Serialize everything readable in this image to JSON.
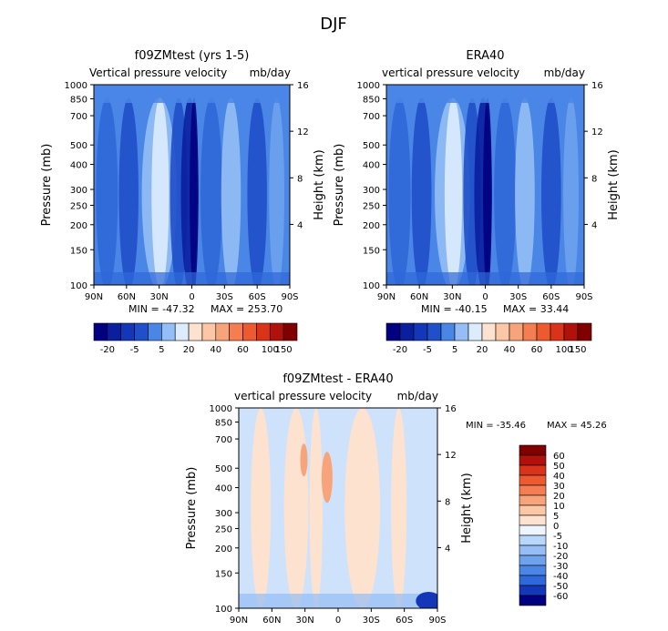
{
  "figure": {
    "title": "DJF",
    "colors": {
      "blues": [
        "#000080",
        "#0a1f9e",
        "#1337b8",
        "#1f4fc9",
        "#2f68d8",
        "#4a86e6",
        "#6ea2ee",
        "#94bef5",
        "#b9d7fa",
        "#dcecfd"
      ],
      "warm": [
        "#fde3cf",
        "#fbc7a6",
        "#f8a47b",
        "#f47e52",
        "#ee5a30",
        "#d9331a",
        "#b0120b",
        "#800000"
      ]
    }
  },
  "chart_data": [
    {
      "type": "heatmap",
      "title": "f09ZMtest (yrs 1-5)",
      "subtitle_left": "Vertical pressure velocity",
      "subtitle_right": "mb/day",
      "ylabel": "Pressure (mb)",
      "y2label": "Height (km)",
      "x_ticks": [
        "90N",
        "60N",
        "30N",
        "0",
        "30S",
        "60S",
        "90S"
      ],
      "x_tick_lat": [
        90,
        60,
        30,
        0,
        -30,
        -60,
        -90
      ],
      "y_ticks": [
        100,
        150,
        200,
        250,
        300,
        400,
        500,
        700,
        850,
        1000
      ],
      "y2_ticks": [
        16,
        12,
        8,
        4
      ],
      "ylim": [
        1000,
        100
      ],
      "log_scale_y": true,
      "min_label": "MIN = -47.32",
      "max_label": "MAX = 253.70",
      "colorbar_labels": [
        "-20",
        "-5",
        "5",
        "20",
        "40",
        "60",
        "100",
        "150"
      ],
      "colorbar_levels": [
        -30,
        -20,
        -10,
        -5,
        0,
        5,
        10,
        20,
        30,
        40,
        50,
        60,
        80,
        100,
        150
      ]
    },
    {
      "type": "heatmap",
      "title": "ERA40",
      "subtitle_left": "vertical pressure velocity",
      "subtitle_right": "mb/day",
      "ylabel": "Pressure (mb)",
      "y2label": "Height (km)",
      "x_ticks": [
        "90N",
        "60N",
        "30N",
        "0",
        "30S",
        "60S",
        "90S"
      ],
      "x_tick_lat": [
        90,
        60,
        30,
        0,
        -30,
        -60,
        -90
      ],
      "y_ticks": [
        100,
        150,
        200,
        250,
        300,
        400,
        500,
        700,
        850,
        1000
      ],
      "y2_ticks": [
        16,
        12,
        8,
        4
      ],
      "ylim": [
        1000,
        100
      ],
      "log_scale_y": true,
      "min_label": "MIN = -40.15",
      "max_label": "MAX = 33.44",
      "colorbar_labels": [
        "-20",
        "-5",
        "5",
        "20",
        "40",
        "60",
        "100",
        "150"
      ],
      "colorbar_levels": [
        -30,
        -20,
        -10,
        -5,
        0,
        5,
        10,
        20,
        30,
        40,
        50,
        60,
        80,
        100,
        150
      ]
    },
    {
      "type": "heatmap",
      "title": "f09ZMtest - ERA40",
      "subtitle_left": "vertical pressure velocity",
      "subtitle_right": "mb/day",
      "ylabel": "Pressure (mb)",
      "y2label": "Height (km)",
      "x_ticks": [
        "90N",
        "60N",
        "30N",
        "0",
        "30S",
        "60S",
        "90S"
      ],
      "x_tick_lat": [
        90,
        60,
        30,
        0,
        -30,
        -60,
        -90
      ],
      "y_ticks": [
        100,
        150,
        200,
        250,
        300,
        400,
        500,
        700,
        850,
        1000
      ],
      "y2_ticks": [
        16,
        12,
        8,
        4
      ],
      "ylim": [
        1000,
        100
      ],
      "log_scale_y": true,
      "min_label": "MIN = -35.46",
      "max_label": "MAX = 45.26",
      "colorbar_labels": [
        "60",
        "50",
        "40",
        "30",
        "20",
        "10",
        "5",
        "0",
        "-5",
        "-10",
        "-20",
        "-30",
        "-40",
        "-50",
        "-60"
      ]
    }
  ]
}
